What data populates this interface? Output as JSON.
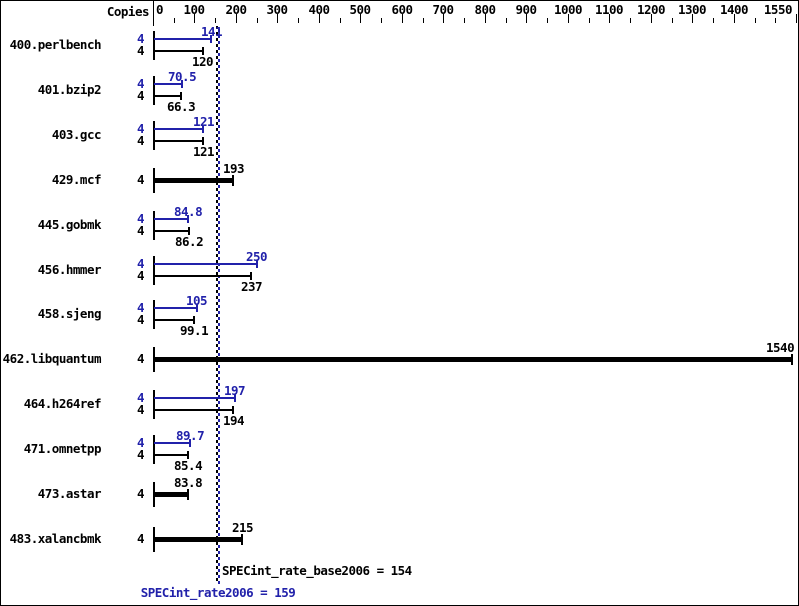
{
  "copies_header": "Copies",
  "colors": {
    "peak_blue": "#2121aa",
    "base_black": "#000000",
    "background": "#ffffff"
  },
  "chart_data": {
    "type": "bar",
    "orientation": "horizontal",
    "x_axis": {
      "min": 0,
      "max": 1550,
      "major_tick_labels": [
        0,
        100,
        200,
        300,
        400,
        500,
        600,
        700,
        800,
        900,
        1000,
        1100,
        1200,
        1300,
        1400,
        1550
      ],
      "minor_tick_step": 50
    },
    "series": [
      {
        "name": "SPECint_rate2006",
        "color": "#2121aa"
      },
      {
        "name": "SPECint_rate_base2006",
        "color": "#000000"
      }
    ],
    "rows": [
      {
        "benchmark": "400.perlbench",
        "copies": "4",
        "peak": 141,
        "peak_label": "141",
        "base": 120,
        "base_label": "120",
        "base_only": false
      },
      {
        "benchmark": "401.bzip2",
        "copies": "4",
        "peak": 70.5,
        "peak_label": "70.5",
        "base": 66.3,
        "base_label": "66.3",
        "base_only": false
      },
      {
        "benchmark": "403.gcc",
        "copies": "4",
        "peak": 121,
        "peak_label": "121",
        "base": 121,
        "base_label": "121",
        "base_only": false
      },
      {
        "benchmark": "429.mcf",
        "copies": "4",
        "base": 193,
        "base_label": "193",
        "base_only": true
      },
      {
        "benchmark": "445.gobmk",
        "copies": "4",
        "peak": 84.8,
        "peak_label": "84.8",
        "base": 86.2,
        "base_label": "86.2",
        "base_only": false
      },
      {
        "benchmark": "456.hmmer",
        "copies": "4",
        "peak": 250,
        "peak_label": "250",
        "base": 237,
        "base_label": "237",
        "base_only": false
      },
      {
        "benchmark": "458.sjeng",
        "copies": "4",
        "peak": 105,
        "peak_label": "105",
        "base": 99.1,
        "base_label": "99.1",
        "base_only": false
      },
      {
        "benchmark": "462.libquantum",
        "copies": "4",
        "base": 1540,
        "base_label": "1540",
        "base_only": true
      },
      {
        "benchmark": "464.h264ref",
        "copies": "4",
        "peak": 197,
        "peak_label": "197",
        "base": 194,
        "base_label": "194",
        "base_only": false
      },
      {
        "benchmark": "471.omnetpp",
        "copies": "4",
        "peak": 89.7,
        "peak_label": "89.7",
        "base": 85.4,
        "base_label": "85.4",
        "base_only": false
      },
      {
        "benchmark": "473.astar",
        "copies": "4",
        "base": 83.8,
        "base_label": "83.8",
        "base_only": true
      },
      {
        "benchmark": "483.xalancbmk",
        "copies": "4",
        "base": 215,
        "base_label": "215",
        "base_only": true
      }
    ],
    "reference_lines": [
      {
        "text": "SPECint_rate_base2006 = 154",
        "value": 154,
        "color": "#000000"
      },
      {
        "text": "SPECint_rate2006 = 159",
        "value": 159,
        "color": "#2121aa"
      }
    ]
  }
}
